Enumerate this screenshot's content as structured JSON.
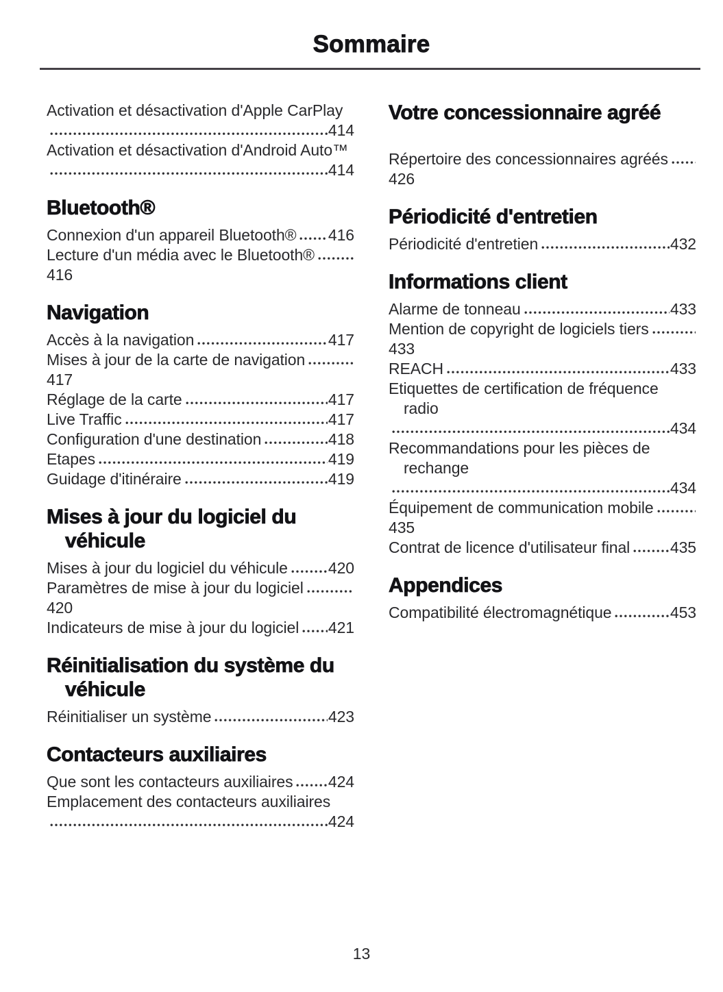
{
  "page": {
    "title": "Sommaire",
    "page_number": "13"
  },
  "theme": {
    "background": "#ffffff",
    "text": "#29292c",
    "heading_text": "#131316",
    "rule": "#454147"
  },
  "toc": {
    "left_column": [
      {
        "heading": null,
        "entries": [
          {
            "label": "Activation et désactivation d'Apple CarPlay",
            "page": "414"
          },
          {
            "label": "Activation et désactivation d'Android Auto™",
            "page": "414"
          }
        ]
      },
      {
        "heading": "Bluetooth®",
        "entries": [
          {
            "label": "Connexion d'un appareil Bluetooth®",
            "page": "416"
          },
          {
            "label": "Lecture d'un média avec le Bluetooth®",
            "page": "416"
          }
        ]
      },
      {
        "heading": "Navigation",
        "entries": [
          {
            "label": "Accès à la navigation",
            "page": "417"
          },
          {
            "label": "Mises à jour de la carte de navigation",
            "page": "417"
          },
          {
            "label": "Réglage de la carte",
            "page": "417"
          },
          {
            "label": "Live Traffic",
            "page": "417"
          },
          {
            "label": "Configuration d'une destination",
            "page": "418"
          },
          {
            "label": "Etapes",
            "page": "419"
          },
          {
            "label": "Guidage d'itinéraire",
            "page": "419"
          }
        ]
      },
      {
        "heading": "Mises à jour du logiciel du véhicule",
        "entries": [
          {
            "label": "Mises à jour du logiciel du véhicule",
            "page": "420"
          },
          {
            "label": "Paramètres de mise à jour du logiciel",
            "page": "420"
          },
          {
            "label": "Indicateurs de mise à jour du logiciel",
            "page": "421"
          }
        ]
      },
      {
        "heading": "Réinitialisation du système du véhicule",
        "entries": [
          {
            "label": "Réinitialiser un système",
            "page": "423"
          }
        ]
      },
      {
        "heading": "Contacteurs auxiliaires",
        "entries": [
          {
            "label": "Que sont les contacteurs auxiliaires",
            "page": "424"
          },
          {
            "label": "Emplacement des contacteurs auxiliaires",
            "page": "424"
          }
        ]
      }
    ],
    "right_column": [
      {
        "heading": "Votre concessionnaire agréé",
        "entries": [
          {
            "label": "Répertoire des concessionnaires agréés",
            "page": "426"
          }
        ]
      },
      {
        "heading": "Périodicité d'entretien",
        "entries": [
          {
            "label": "Périodicité d'entretien",
            "page": "432"
          }
        ]
      },
      {
        "heading": "Informations client",
        "entries": [
          {
            "label": "Alarme de tonneau",
            "page": "433"
          },
          {
            "label": "Mention de copyright de logiciels tiers",
            "page": "433"
          },
          {
            "label": "REACH",
            "page": "433"
          },
          {
            "label": "Etiquettes de certification de fréquence radio",
            "page": "434"
          },
          {
            "label": "Recommandations pour les pièces de rechange",
            "page": "434"
          },
          {
            "label": "Équipement de communication mobile",
            "page": "435"
          },
          {
            "label": "Contrat de licence d'utilisateur final",
            "page": "435"
          }
        ]
      },
      {
        "heading": "Appendices",
        "entries": [
          {
            "label": "Compatibilité électromagnétique",
            "page": "453"
          }
        ]
      }
    ]
  }
}
